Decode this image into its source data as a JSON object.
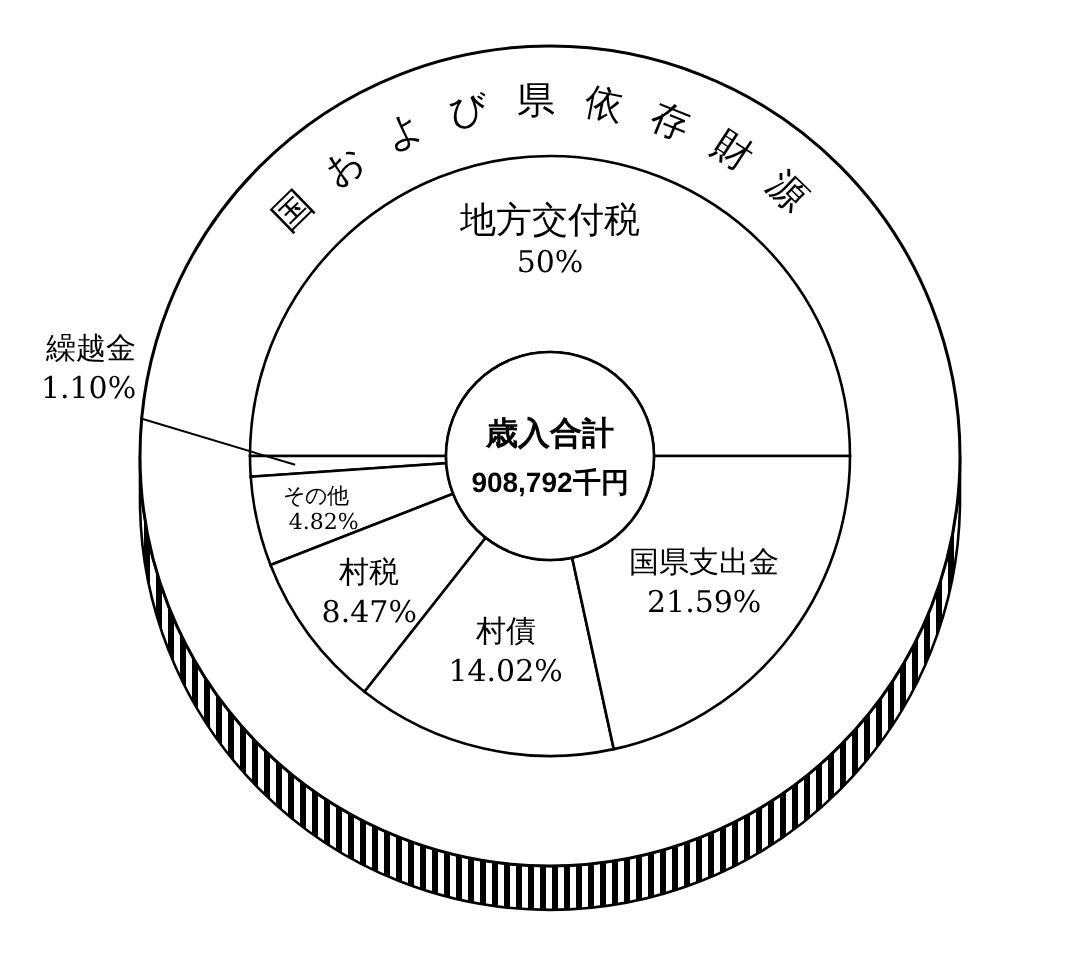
{
  "chart_data": {
    "type": "donut",
    "title": "歳入合計",
    "subtitle": "908,792千円",
    "categories": [
      "地方交付税",
      "繰越金",
      "その他",
      "村税",
      "村債",
      "国県支出金"
    ],
    "values": [
      50,
      1.1,
      4.82,
      8.47,
      14.02,
      21.59
    ],
    "value_labels": [
      "50%",
      "1.10%",
      "4.82%",
      "8.47%",
      "14.02%",
      "21.59%"
    ],
    "colors": [
      "#ffffff",
      "#ffffff",
      "#ffffff",
      "#ffffff",
      "#ffffff",
      "#ffffff"
    ],
    "annotations": [
      "国および県依存財源"
    ]
  }
}
